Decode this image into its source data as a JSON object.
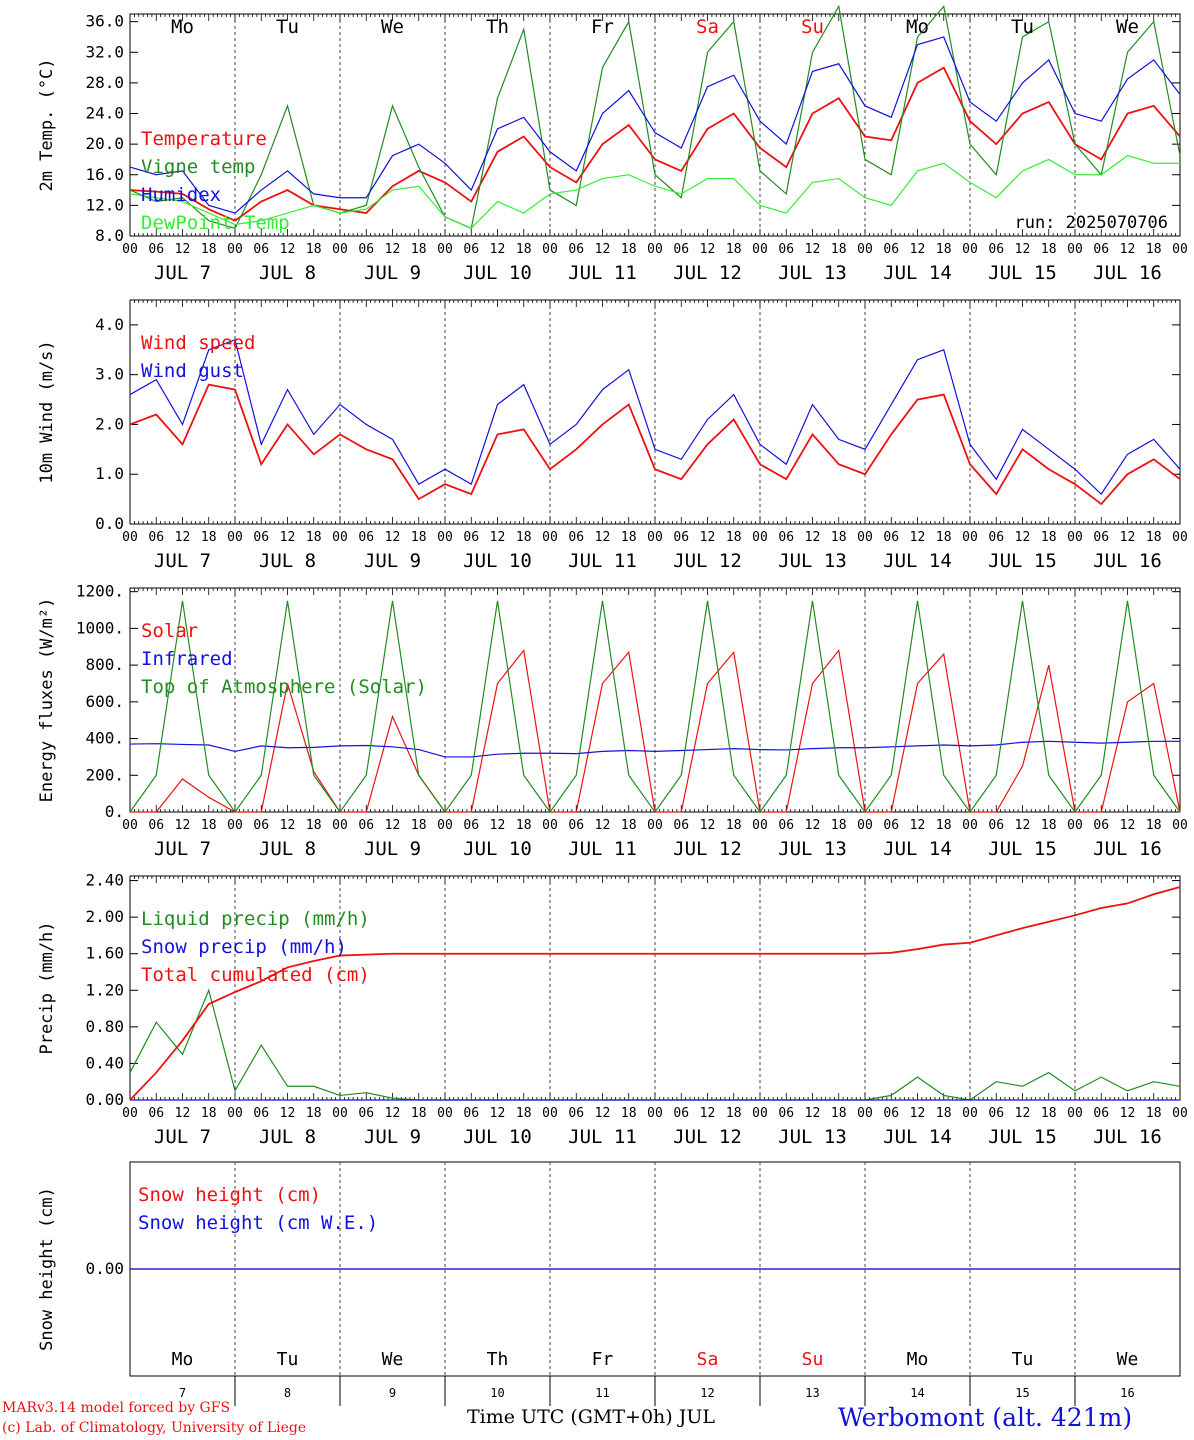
{
  "chart_data": [
    {
      "type": "line",
      "ylabel": "2m Temp. (°C)",
      "ylim": [
        8,
        37
      ],
      "yticks": [
        "36.0",
        "32.0",
        "28.0",
        "24.0",
        "20.0",
        "16.0",
        "12.0",
        "8.0"
      ],
      "run_label": "run: 2025070706",
      "x_hours": [
        0,
        6,
        12,
        18,
        24,
        30,
        36,
        42,
        48,
        54,
        60,
        66,
        72,
        78,
        84,
        90,
        96,
        102,
        108,
        114,
        120,
        126,
        132,
        138,
        144,
        150,
        156,
        162,
        168,
        174,
        180,
        186,
        192,
        198,
        204,
        210,
        216,
        222,
        228,
        234,
        240
      ],
      "series": [
        {
          "name": "Temperature",
          "color": "#ee1111",
          "values": [
            14.0,
            13.8,
            13.5,
            11.5,
            10.0,
            12.5,
            14.0,
            12.0,
            11.5,
            11.0,
            14.5,
            16.5,
            15.0,
            12.5,
            19.0,
            21.0,
            17.0,
            15.0,
            20.0,
            22.5,
            18.0,
            16.5,
            22.0,
            24.0,
            19.5,
            17.0,
            24.0,
            26.0,
            21.0,
            20.5,
            28.0,
            30.0,
            23.0,
            20.0,
            24.0,
            25.5,
            20.0,
            18.0,
            24.0,
            25.0,
            21.0
          ]
        },
        {
          "name": "Vigne temp",
          "color": "#228b22",
          "values": [
            14.0,
            12.5,
            13.0,
            10.0,
            9.0,
            16.0,
            25.0,
            12.0,
            11.0,
            12.0,
            25.0,
            17.0,
            10.5,
            9.0,
            26.0,
            35.0,
            14.0,
            12.0,
            30.0,
            36.0,
            16.0,
            13.0,
            32.0,
            36.0,
            16.5,
            13.5,
            32.0,
            38.0,
            18.0,
            16.0,
            34.0,
            38.0,
            20.0,
            16.0,
            34.0,
            36.0,
            20.0,
            16.0,
            32.0,
            36.0,
            18.5
          ]
        },
        {
          "name": "Humidex",
          "color": "#1111dd",
          "values": [
            17.0,
            16.0,
            16.5,
            12.0,
            11.0,
            14.0,
            16.5,
            13.5,
            13.0,
            13.0,
            18.5,
            20.0,
            17.5,
            14.0,
            22.0,
            23.5,
            19.0,
            16.5,
            24.0,
            27.0,
            21.5,
            19.5,
            27.5,
            29.0,
            23.0,
            20.0,
            29.5,
            30.5,
            25.0,
            23.5,
            33.0,
            34.0,
            25.5,
            23.0,
            28.0,
            31.0,
            24.0,
            23.0,
            28.5,
            31.0,
            26.5
          ]
        },
        {
          "name": "DewPoint Temp",
          "color": "#33ee33",
          "values": [
            13.5,
            13.0,
            12.5,
            11.0,
            9.5,
            10.0,
            11.0,
            12.0,
            11.0,
            11.5,
            14.0,
            14.5,
            10.5,
            9.0,
            12.5,
            11.0,
            13.5,
            14.0,
            15.5,
            16.0,
            14.5,
            13.5,
            15.5,
            15.5,
            12.0,
            11.0,
            15.0,
            15.5,
            13.0,
            12.0,
            16.5,
            17.5,
            15.0,
            13.0,
            16.5,
            18.0,
            16.0,
            16.0,
            18.5,
            17.5,
            17.5
          ]
        }
      ],
      "top_days": [
        {
          "label": "Mo",
          "color": "#000000"
        },
        {
          "label": "Tu",
          "color": "#000000"
        },
        {
          "label": "We",
          "color": "#000000"
        },
        {
          "label": "Th",
          "color": "#000000"
        },
        {
          "label": "Fr",
          "color": "#000000"
        },
        {
          "label": "Sa",
          "color": "#ee1111"
        },
        {
          "label": "Su",
          "color": "#ee1111"
        },
        {
          "label": "Mo",
          "color": "#000000"
        },
        {
          "label": "Tu",
          "color": "#000000"
        },
        {
          "label": "We",
          "color": "#000000"
        }
      ]
    },
    {
      "type": "line",
      "ylabel": "10m Wind (m/s)",
      "ylim": [
        0,
        4.5
      ],
      "yticks": [
        "4.0",
        "3.0",
        "2.0",
        "1.0",
        "0.0"
      ],
      "x_hours": [
        0,
        6,
        12,
        18,
        24,
        30,
        36,
        42,
        48,
        54,
        60,
        66,
        72,
        78,
        84,
        90,
        96,
        102,
        108,
        114,
        120,
        126,
        132,
        138,
        144,
        150,
        156,
        162,
        168,
        174,
        180,
        186,
        192,
        198,
        204,
        210,
        216,
        222,
        228,
        234,
        240
      ],
      "series": [
        {
          "name": "Wind speed",
          "color": "#ee1111",
          "values": [
            2.0,
            2.2,
            1.6,
            2.8,
            2.7,
            1.2,
            2.0,
            1.4,
            1.8,
            1.5,
            1.3,
            0.5,
            0.8,
            0.6,
            1.8,
            1.9,
            1.1,
            1.5,
            2.0,
            2.4,
            1.1,
            0.9,
            1.6,
            2.1,
            1.2,
            0.9,
            1.8,
            1.2,
            1.0,
            1.8,
            2.5,
            2.6,
            1.2,
            0.6,
            1.5,
            1.1,
            0.8,
            0.4,
            1.0,
            1.3,
            0.9
          ]
        },
        {
          "name": "Wind gust",
          "color": "#1111dd",
          "values": [
            2.6,
            2.9,
            2.0,
            3.5,
            3.7,
            1.6,
            2.7,
            1.8,
            2.4,
            2.0,
            1.7,
            0.8,
            1.1,
            0.8,
            2.4,
            2.8,
            1.6,
            2.0,
            2.7,
            3.1,
            1.5,
            1.3,
            2.1,
            2.6,
            1.6,
            1.2,
            2.4,
            1.7,
            1.5,
            2.4,
            3.3,
            3.5,
            1.6,
            0.9,
            1.9,
            1.5,
            1.1,
            0.6,
            1.4,
            1.7,
            1.1
          ]
        }
      ]
    },
    {
      "type": "line",
      "ylabel": "Energy fluxes (W/m²)",
      "ylim": [
        0,
        1220
      ],
      "yticks": [
        "1200.",
        "1000.",
        "800.",
        "600.",
        "400.",
        "200.",
        "0."
      ],
      "x_hours": [
        0,
        6,
        12,
        18,
        24,
        30,
        36,
        42,
        48,
        54,
        60,
        66,
        72,
        78,
        84,
        90,
        96,
        102,
        108,
        114,
        120,
        126,
        132,
        138,
        144,
        150,
        156,
        162,
        168,
        174,
        180,
        186,
        192,
        198,
        204,
        210,
        216,
        222,
        228,
        234,
        240
      ],
      "series": [
        {
          "name": "Solar",
          "color": "#ee1111",
          "values": [
            0,
            0,
            180,
            80,
            0,
            0,
            700,
            220,
            0,
            0,
            520,
            200,
            0,
            0,
            700,
            880,
            0,
            0,
            700,
            870,
            0,
            0,
            700,
            870,
            0,
            0,
            700,
            880,
            0,
            0,
            700,
            860,
            0,
            0,
            250,
            800,
            0,
            0,
            600,
            700,
            0
          ]
        },
        {
          "name": "Infrared",
          "color": "#1111dd",
          "values": [
            370,
            372,
            368,
            365,
            330,
            360,
            350,
            352,
            360,
            362,
            355,
            340,
            300,
            300,
            315,
            320,
            320,
            318,
            330,
            335,
            330,
            335,
            340,
            345,
            340,
            338,
            345,
            350,
            350,
            355,
            360,
            365,
            360,
            365,
            380,
            385,
            380,
            375,
            380,
            385,
            385
          ]
        },
        {
          "name": "Top of Atmosphere (Solar)",
          "color": "#228b22",
          "values": [
            0,
            200,
            1150,
            200,
            0,
            200,
            1150,
            200,
            0,
            200,
            1150,
            200,
            0,
            200,
            1150,
            200,
            0,
            200,
            1150,
            200,
            0,
            200,
            1150,
            200,
            0,
            200,
            1150,
            200,
            0,
            200,
            1150,
            200,
            0,
            200,
            1150,
            200,
            0,
            200,
            1150,
            200,
            0
          ]
        }
      ]
    },
    {
      "type": "line",
      "ylabel": "Precip (mm/h)",
      "ylim": [
        0,
        2.45
      ],
      "yticks": [
        "2.40",
        "2.00",
        "1.60",
        "1.20",
        "0.80",
        "0.40",
        "0.00"
      ],
      "x_hours": [
        0,
        6,
        12,
        18,
        24,
        30,
        36,
        42,
        48,
        54,
        60,
        66,
        72,
        78,
        84,
        90,
        96,
        102,
        108,
        114,
        120,
        126,
        132,
        138,
        144,
        150,
        156,
        162,
        168,
        174,
        180,
        186,
        192,
        198,
        204,
        210,
        216,
        222,
        228,
        234,
        240
      ],
      "series": [
        {
          "name": "Liquid precip (mm/h)",
          "color": "#228b22",
          "values": [
            0.3,
            0.85,
            0.5,
            1.2,
            0.1,
            0.6,
            0.15,
            0.15,
            0.05,
            0.08,
            0.02,
            0,
            0,
            0,
            0,
            0,
            0,
            0,
            0,
            0,
            0,
            0,
            0,
            0,
            0,
            0,
            0,
            0,
            0,
            0.05,
            0.25,
            0.05,
            0,
            0.2,
            0.15,
            0.3,
            0.1,
            0.25,
            0.1,
            0.2,
            0.15
          ]
        },
        {
          "name": "Snow precip (mm/h)",
          "color": "#1111dd",
          "values": [
            0,
            0,
            0,
            0,
            0,
            0,
            0,
            0,
            0,
            0,
            0,
            0,
            0,
            0,
            0,
            0,
            0,
            0,
            0,
            0,
            0,
            0,
            0,
            0,
            0,
            0,
            0,
            0,
            0,
            0,
            0,
            0,
            0,
            0,
            0,
            0,
            0,
            0,
            0,
            0,
            0
          ]
        },
        {
          "name": "Total cumulated (cm)",
          "color": "#ee1111",
          "values": [
            0.0,
            0.3,
            0.65,
            1.05,
            1.18,
            1.3,
            1.45,
            1.52,
            1.58,
            1.59,
            1.6,
            1.6,
            1.6,
            1.6,
            1.6,
            1.6,
            1.6,
            1.6,
            1.6,
            1.6,
            1.6,
            1.6,
            1.6,
            1.6,
            1.6,
            1.6,
            1.6,
            1.6,
            1.6,
            1.61,
            1.65,
            1.7,
            1.72,
            1.8,
            1.88,
            1.95,
            2.02,
            2.1,
            2.15,
            2.25,
            2.33
          ]
        }
      ]
    },
    {
      "type": "line",
      "ylabel": "Snow height (cm)",
      "ylim": [
        -1,
        1
      ],
      "yticks": [
        "0.00"
      ],
      "series": [
        {
          "name": "Snow height (cm)",
          "color": "#ee1111",
          "values": [
            0,
            0
          ]
        },
        {
          "name": "Snow height (cm W.E.)",
          "color": "#1111dd",
          "values": [
            0,
            0
          ]
        }
      ],
      "bottom_days": [
        {
          "label": "Mo",
          "num": "7",
          "color": "#000000"
        },
        {
          "label": "Tu",
          "num": "8",
          "color": "#000000"
        },
        {
          "label": "We",
          "num": "9",
          "color": "#000000"
        },
        {
          "label": "Th",
          "num": "10",
          "color": "#000000"
        },
        {
          "label": "Fr",
          "num": "11",
          "color": "#000000"
        },
        {
          "label": "Sa",
          "num": "12",
          "color": "#ee1111"
        },
        {
          "label": "Su",
          "num": "13",
          "color": "#ee1111"
        },
        {
          "label": "Mo",
          "num": "14",
          "color": "#000000"
        },
        {
          "label": "Tu",
          "num": "15",
          "color": "#000000"
        },
        {
          "label": "We",
          "num": "16",
          "color": "#000000"
        }
      ],
      "xlabel": "Time UTC (GMT+0h) JUL"
    }
  ],
  "date_labels": [
    "JUL  7",
    "JUL  8",
    "JUL  9",
    "JUL 10",
    "JUL 11",
    "JUL 12",
    "JUL 13",
    "JUL 14",
    "JUL 15",
    "JUL 16"
  ],
  "hour_labels": [
    "00",
    "06",
    "12",
    "18"
  ],
  "end_hour_label": "00",
  "footer": {
    "model_line": "MARv3.14 model forced by GFS",
    "lab_line": "(c) Lab. of Climatology, University of Liege",
    "station": "Werbomont (alt. 421m)"
  }
}
